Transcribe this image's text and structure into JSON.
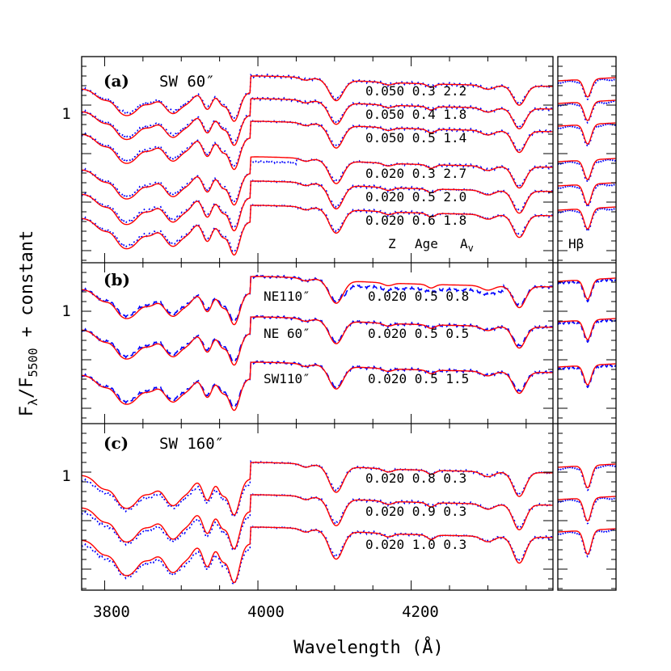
{
  "chart_data": {
    "type": "line",
    "xlabel": "Wavelength (Å)",
    "ylabel": "Fλ/F5500 + constant",
    "xlim": [
      3770,
      4385
    ],
    "x_ticks": [
      "3800",
      "4000",
      "4200"
    ],
    "hbeta_label": "Hβ",
    "model_color": "#ff0000",
    "observed_color": "#0000ff",
    "panels": [
      {
        "id": "a",
        "letter": "(a)",
        "title": "SW 60″",
        "y_tick": "1",
        "header": [
          "Z",
          "Age",
          "Av"
        ],
        "spectra": [
          {
            "label": "0.050 0.3 2.2",
            "Z": 0.05,
            "age": 0.3,
            "Av": 2.2
          },
          {
            "label": "0.050 0.4 1.8",
            "Z": 0.05,
            "age": 0.4,
            "Av": 1.8
          },
          {
            "label": "0.050 0.5 1.4",
            "Z": 0.05,
            "age": 0.5,
            "Av": 1.4
          },
          {
            "label": "0.020 0.3 2.7",
            "Z": 0.02,
            "age": 0.3,
            "Av": 2.7
          },
          {
            "label": "0.020 0.5 2.0",
            "Z": 0.02,
            "age": 0.5,
            "Av": 2.0
          },
          {
            "label": "0.020 0.6 1.8",
            "Z": 0.02,
            "age": 0.6,
            "Av": 1.8
          }
        ]
      },
      {
        "id": "b",
        "letter": "(b)",
        "title": "",
        "y_tick": "1",
        "spectra": [
          {
            "region": "NE110″",
            "label": "0.020 0.5 0.8",
            "Z": 0.02,
            "age": 0.5,
            "Av": 0.8
          },
          {
            "region": "NE 60″",
            "label": "0.020 0.5 0.5",
            "Z": 0.02,
            "age": 0.5,
            "Av": 0.5
          },
          {
            "region": "SW110″",
            "label": "0.020 0.5 1.5",
            "Z": 0.02,
            "age": 0.5,
            "Av": 1.5
          }
        ]
      },
      {
        "id": "c",
        "letter": "(c)",
        "title": "SW 160″",
        "y_tick": "1",
        "spectra": [
          {
            "label": "0.020 0.8 0.3",
            "Z": 0.02,
            "age": 0.8,
            "Av": 0.3
          },
          {
            "label": "0.020 0.9 0.3",
            "Z": 0.02,
            "age": 0.9,
            "Av": 0.3
          },
          {
            "label": "0.020 1.0 0.3",
            "Z": 0.02,
            "age": 1.0,
            "Av": 0.3
          }
        ]
      }
    ]
  }
}
